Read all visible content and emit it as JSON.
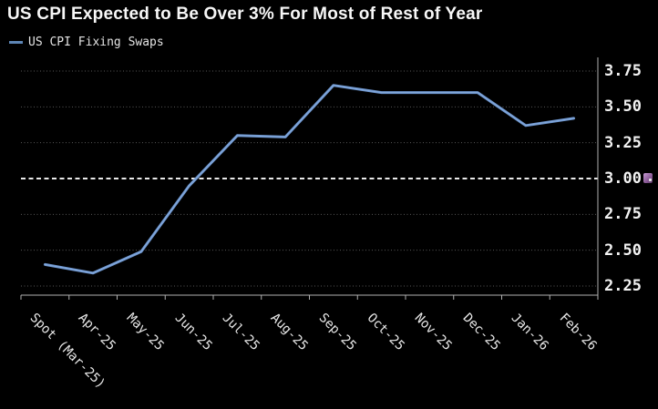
{
  "chart_data": {
    "type": "line",
    "title": "US CPI Expected to Be Over 3% For Most of Rest of Year",
    "categories": [
      "Spot (Mar-25)",
      "Apr-25",
      "May-25",
      "Jun-25",
      "Jul-25",
      "Aug-25",
      "Sep-25",
      "Oct-25",
      "Nov-25",
      "Dec-25",
      "Jan-26",
      "Feb-26"
    ],
    "series": [
      {
        "name": "US CPI Fixing Swaps",
        "color": "#6e96cf",
        "values": [
          2.4,
          2.34,
          2.49,
          2.95,
          3.3,
          3.29,
          3.65,
          3.6,
          3.6,
          3.6,
          3.37,
          3.42
        ]
      }
    ],
    "y_ticks": [
      3.75,
      3.5,
      3.25,
      3.0,
      2.75,
      2.5,
      2.25
    ],
    "y_tick_labels": [
      "3.75",
      "3.50",
      "3.25",
      "3.00",
      "2.75",
      "2.50",
      "2.25"
    ],
    "ylim": [
      2.19,
      3.85
    ],
    "y_axis_side": "right",
    "xlabel": "",
    "ylabel": "",
    "grid": "dotted-horizontal",
    "legend_position": "top-left",
    "reference_line": {
      "value": 3.0,
      "style": "dashed",
      "color": "#eaeaea"
    },
    "annotations": [
      {
        "type": "y-axis-marker-icon",
        "at_value": 3.0
      }
    ]
  },
  "colors": {
    "background": "#000000",
    "title_text": "#f7f7f7",
    "axis": "#b0b0b0",
    "grid_dots": "#8f8f8f",
    "tick_label": "#f2f2f2",
    "line": "#6e96cf",
    "line_highlight": "#8fb2e0",
    "legend_marker": "#5d85b5",
    "reference_dash": "#eaeaea",
    "annotation_icon": "#a878b4"
  }
}
